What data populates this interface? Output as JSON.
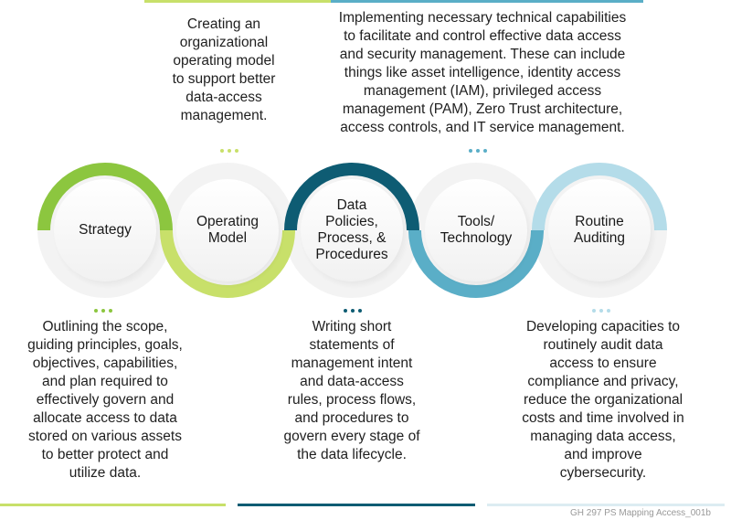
{
  "colors": {
    "strategy": "#8cc63f",
    "operating": "#c8e06a",
    "policies": "#0e5c73",
    "tools": "#5aaec7",
    "auditing": "#b4dce9"
  },
  "steps": [
    {
      "label": "Strategy"
    },
    {
      "label": "Operating\nModel"
    },
    {
      "label": "Data\nPolicies,\nProcess, &\nProcedures"
    },
    {
      "label": "Tools/\nTechnology"
    },
    {
      "label": "Routine\nAuditing"
    }
  ],
  "descriptions": {
    "operating": "Creating an\norganizational\noperating model\nto support better\ndata-access\nmanagement.",
    "tools": "Implementing necessary technical capabilities\nto facilitate and control effective data access\nand security management. These can include\nthings like asset intelligence, identity access\nmanagement (IAM), privileged access\nmanagement (PAM), Zero Trust architecture,\naccess controls, and IT service management.",
    "strategy": "Outlining the scope,\nguiding principles, goals,\nobjectives, capabilities,\nand plan required to\neffectively govern and\nallocate access to data\nstored on various assets\nto better protect and\nutilize data.",
    "policies": "Writing short\nstatements of\nmanagement intent\nand data-access\nrules, process flows,\nand procedures to\ngovern every stage of\nthe data lifecycle.",
    "auditing": "Developing capacities to\nroutinely audit data\naccess to ensure\ncompliance and privacy,\nreduce the organizational\ncosts and time involved in\nmanaging data access,\nand improve\ncybersecurity."
  },
  "footer": "GH 297 PS Mapping Access_001b"
}
